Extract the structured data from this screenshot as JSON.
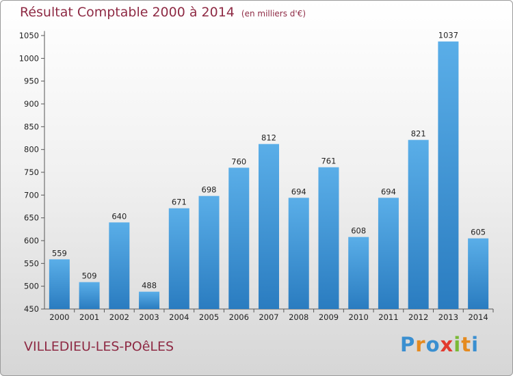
{
  "header": {
    "title": "Résultat Comptable 2000 à 2014",
    "subtitle": "(en milliers d'€)"
  },
  "footer": {
    "town": "VILLEDIEU-LES-POêLES",
    "brand_letters": [
      {
        "ch": "P",
        "color": "#3a8fd0"
      },
      {
        "ch": "r",
        "color": "#e58a1f"
      },
      {
        "ch": "o",
        "color": "#3a8fd0"
      },
      {
        "ch": "x",
        "color": "#e23a2f"
      },
      {
        "ch": "i",
        "color": "#7ab936"
      },
      {
        "ch": "t",
        "color": "#e58a1f"
      },
      {
        "ch": "i",
        "color": "#3a8fd0"
      }
    ]
  },
  "chart_data": {
    "type": "bar",
    "title": "Résultat Comptable 2000 à 2014",
    "subtitle": "(en milliers d'€)",
    "categories": [
      "2000",
      "2001",
      "2002",
      "2003",
      "2004",
      "2005",
      "2006",
      "2007",
      "2008",
      "2009",
      "2010",
      "2011",
      "2012",
      "2013",
      "2014"
    ],
    "values": [
      559,
      509,
      640,
      488,
      671,
      698,
      760,
      812,
      694,
      761,
      608,
      694,
      821,
      1037,
      605
    ],
    "ylim": [
      450,
      1060
    ],
    "yticks": [
      450,
      500,
      550,
      600,
      650,
      700,
      750,
      800,
      850,
      900,
      950,
      1000,
      1050
    ],
    "grid": false,
    "bar_color_top": "#5aaee8",
    "bar_color_bottom": "#2a7cc0"
  }
}
